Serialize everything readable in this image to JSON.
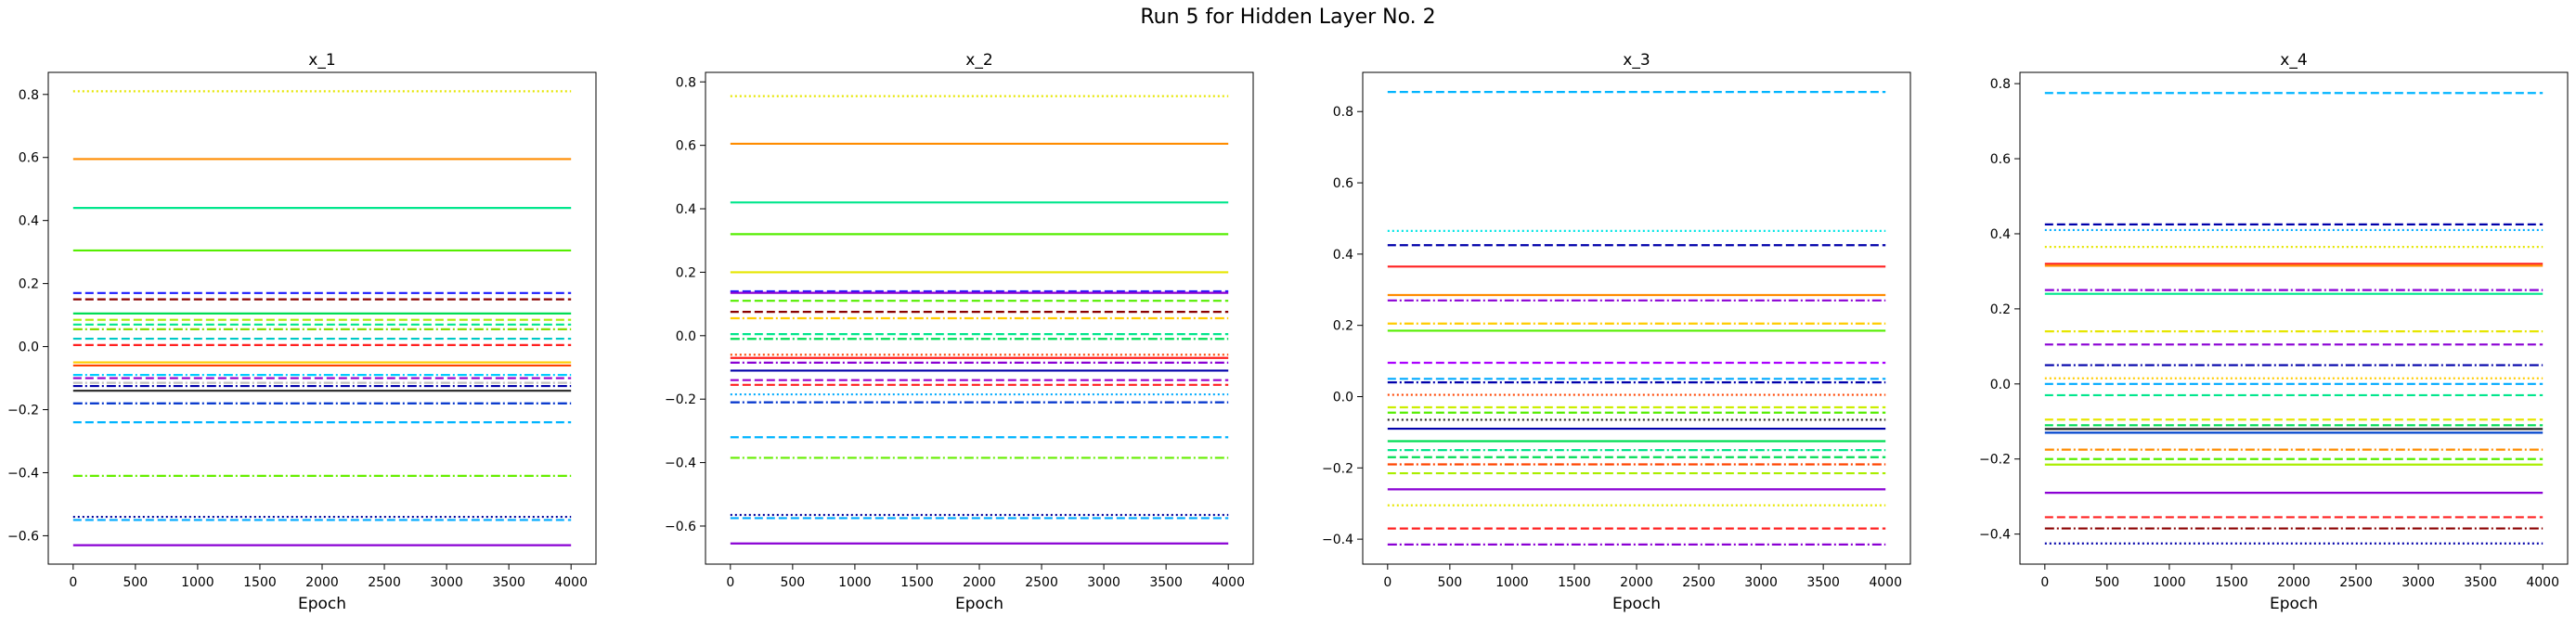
{
  "figure": {
    "suptitle": "Run 5 for Hidden Layer No. 2"
  },
  "chart_data": [
    {
      "type": "line",
      "title": "x_1",
      "xlabel": "Epoch",
      "ylabel": "",
      "xlim": [
        -200,
        4200
      ],
      "ylim": [
        -0.69,
        0.87
      ],
      "xticks": [
        0,
        500,
        1000,
        1500,
        2000,
        2500,
        3000,
        3500,
        4000
      ],
      "yticks": [
        -0.6,
        -0.4,
        -0.2,
        0.0,
        0.2,
        0.4,
        0.6,
        0.8
      ],
      "x": [
        0,
        4000
      ],
      "series": [
        {
          "value": 0.81,
          "color": "#e6e600",
          "dash": "dotted"
        },
        {
          "value": 0.595,
          "color": "#ff8c00",
          "dash": "solid"
        },
        {
          "value": 0.44,
          "color": "#00e68c",
          "dash": "solid"
        },
        {
          "value": 0.305,
          "color": "#55ee00",
          "dash": "solid"
        },
        {
          "value": 0.17,
          "color": "#1a1aff",
          "dash": "dashed"
        },
        {
          "value": 0.15,
          "color": "#8b0000",
          "dash": "dashed"
        },
        {
          "value": 0.105,
          "color": "#00dd55",
          "dash": "solid"
        },
        {
          "value": 0.085,
          "color": "#aaee00",
          "dash": "dashed"
        },
        {
          "value": 0.07,
          "color": "#00e68c",
          "dash": "dashed"
        },
        {
          "value": 0.055,
          "color": "#88dd00",
          "dash": "dashdot"
        },
        {
          "value": 0.025,
          "color": "#00c8c8",
          "dash": "dashed"
        },
        {
          "value": 0.005,
          "color": "#ff2020",
          "dash": "dashed"
        },
        {
          "value": -0.05,
          "color": "#ffcc00",
          "dash": "solid"
        },
        {
          "value": -0.06,
          "color": "#ff4400",
          "dash": "solid"
        },
        {
          "value": -0.09,
          "color": "#00ccff",
          "dash": "dashdot"
        },
        {
          "value": -0.1,
          "color": "#9900cc",
          "dash": "dashed"
        },
        {
          "value": -0.115,
          "color": "#c0c0c0",
          "dash": "dashdot"
        },
        {
          "value": -0.125,
          "color": "#0000aa",
          "dash": "dashdot"
        },
        {
          "value": -0.14,
          "color": "#333333",
          "dash": "solid"
        },
        {
          "value": -0.18,
          "color": "#0033cc",
          "dash": "dashdot"
        },
        {
          "value": -0.24,
          "color": "#00b4ff",
          "dash": "dashed"
        },
        {
          "value": -0.41,
          "color": "#66ee00",
          "dash": "dashdot"
        },
        {
          "value": -0.54,
          "color": "#000099",
          "dash": "dotted"
        },
        {
          "value": -0.55,
          "color": "#00aaff",
          "dash": "dashed"
        },
        {
          "value": -0.63,
          "color": "#8a00d4",
          "dash": "solid"
        }
      ]
    },
    {
      "type": "line",
      "title": "x_2",
      "xlabel": "Epoch",
      "ylabel": "",
      "xlim": [
        -200,
        4200
      ],
      "ylim": [
        -0.72,
        0.83
      ],
      "xticks": [
        0,
        500,
        1000,
        1500,
        2000,
        2500,
        3000,
        3500,
        4000
      ],
      "yticks": [
        -0.6,
        -0.4,
        -0.2,
        0.0,
        0.2,
        0.4,
        0.6,
        0.8
      ],
      "x": [
        0,
        4000
      ],
      "series": [
        {
          "value": 0.755,
          "color": "#e6e600",
          "dash": "dotted"
        },
        {
          "value": 0.605,
          "color": "#ff8c00",
          "dash": "solid"
        },
        {
          "value": 0.42,
          "color": "#00e68c",
          "dash": "solid"
        },
        {
          "value": 0.32,
          "color": "#55ee00",
          "dash": "solid"
        },
        {
          "value": 0.2,
          "color": "#e6e600",
          "dash": "solid"
        },
        {
          "value": 0.14,
          "color": "#1a1aff",
          "dash": "dashed"
        },
        {
          "value": 0.135,
          "color": "#8a00d4",
          "dash": "solid"
        },
        {
          "value": 0.11,
          "color": "#55ee00",
          "dash": "dashed"
        },
        {
          "value": 0.075,
          "color": "#8b0000",
          "dash": "dashed"
        },
        {
          "value": 0.055,
          "color": "#ffcc00",
          "dash": "dashdot"
        },
        {
          "value": 0.005,
          "color": "#00e68c",
          "dash": "dashed"
        },
        {
          "value": -0.01,
          "color": "#00dd55",
          "dash": "dashdot"
        },
        {
          "value": -0.06,
          "color": "#ff4400",
          "dash": "dotted"
        },
        {
          "value": -0.07,
          "color": "#ff2020",
          "dash": "solid"
        },
        {
          "value": -0.085,
          "color": "#8a00d4",
          "dash": "dashdot"
        },
        {
          "value": -0.11,
          "color": "#0000aa",
          "dash": "solid"
        },
        {
          "value": -0.14,
          "color": "#9900cc",
          "dash": "dashed"
        },
        {
          "value": -0.155,
          "color": "#ff2020",
          "dash": "dashed"
        },
        {
          "value": -0.185,
          "color": "#00aaff",
          "dash": "dotted"
        },
        {
          "value": -0.21,
          "color": "#0033cc",
          "dash": "dashdot"
        },
        {
          "value": -0.32,
          "color": "#00b4ff",
          "dash": "dashed"
        },
        {
          "value": -0.385,
          "color": "#66ee00",
          "dash": "dashdot"
        },
        {
          "value": -0.565,
          "color": "#000099",
          "dash": "dotted"
        },
        {
          "value": -0.575,
          "color": "#00aaff",
          "dash": "dashed"
        },
        {
          "value": -0.655,
          "color": "#8a00d4",
          "dash": "solid"
        }
      ]
    },
    {
      "type": "line",
      "title": "x_3",
      "xlabel": "Epoch",
      "ylabel": "",
      "xlim": [
        -200,
        4200
      ],
      "ylim": [
        -0.47,
        0.91
      ],
      "xticks": [
        0,
        500,
        1000,
        1500,
        2000,
        2500,
        3000,
        3500,
        4000
      ],
      "yticks": [
        -0.4,
        -0.2,
        0.0,
        0.2,
        0.4,
        0.6,
        0.8
      ],
      "x": [
        0,
        4000
      ],
      "series": [
        {
          "value": 0.855,
          "color": "#00b4ff",
          "dash": "dashed"
        },
        {
          "value": 0.465,
          "color": "#00e6e6",
          "dash": "dotted"
        },
        {
          "value": 0.425,
          "color": "#0000aa",
          "dash": "dashed"
        },
        {
          "value": 0.365,
          "color": "#ff2020",
          "dash": "solid"
        },
        {
          "value": 0.285,
          "color": "#ff8c00",
          "dash": "solid"
        },
        {
          "value": 0.27,
          "color": "#8a00d4",
          "dash": "dashdot"
        },
        {
          "value": 0.205,
          "color": "#ffcc00",
          "dash": "dashdot"
        },
        {
          "value": 0.185,
          "color": "#55ee00",
          "dash": "solid"
        },
        {
          "value": 0.095,
          "color": "#aa00ff",
          "dash": "dashed"
        },
        {
          "value": 0.05,
          "color": "#00aaff",
          "dash": "dashed"
        },
        {
          "value": 0.04,
          "color": "#0000aa",
          "dash": "dashdot"
        },
        {
          "value": 0.005,
          "color": "#ff4400",
          "dash": "dotted"
        },
        {
          "value": -0.03,
          "color": "#ccee00",
          "dash": "dashed"
        },
        {
          "value": -0.045,
          "color": "#55ee00",
          "dash": "dashed"
        },
        {
          "value": -0.065,
          "color": "#222222",
          "dash": "dotted"
        },
        {
          "value": -0.09,
          "color": "#0000aa",
          "dash": "solid"
        },
        {
          "value": -0.125,
          "color": "#00dd55",
          "dash": "solid"
        },
        {
          "value": -0.15,
          "color": "#00e68c",
          "dash": "dashdot"
        },
        {
          "value": -0.17,
          "color": "#00dd55",
          "dash": "dashed"
        },
        {
          "value": -0.19,
          "color": "#ff4400",
          "dash": "dashdot"
        },
        {
          "value": -0.215,
          "color": "#aaee00",
          "dash": "dashed"
        },
        {
          "value": -0.26,
          "color": "#8a00d4",
          "dash": "solid"
        },
        {
          "value": -0.305,
          "color": "#e6e600",
          "dash": "dotted"
        },
        {
          "value": -0.37,
          "color": "#ff2020",
          "dash": "dashed"
        },
        {
          "value": -0.415,
          "color": "#8a00d4",
          "dash": "dashdot"
        }
      ]
    },
    {
      "type": "line",
      "title": "x_4",
      "xlabel": "Epoch",
      "ylabel": "",
      "xlim": [
        -200,
        4200
      ],
      "ylim": [
        -0.48,
        0.83
      ],
      "xticks": [
        0,
        500,
        1000,
        1500,
        2000,
        2500,
        3000,
        3500,
        4000
      ],
      "yticks": [
        -0.4,
        -0.2,
        0.0,
        0.2,
        0.4,
        0.6,
        0.8
      ],
      "x": [
        0,
        4000
      ],
      "series": [
        {
          "value": 0.775,
          "color": "#00b4ff",
          "dash": "dashed"
        },
        {
          "value": 0.425,
          "color": "#0000aa",
          "dash": "dashed"
        },
        {
          "value": 0.41,
          "color": "#00aaff",
          "dash": "dotted"
        },
        {
          "value": 0.365,
          "color": "#e6e600",
          "dash": "dotted"
        },
        {
          "value": 0.32,
          "color": "#ff2020",
          "dash": "solid"
        },
        {
          "value": 0.315,
          "color": "#ff8c00",
          "dash": "solid"
        },
        {
          "value": 0.25,
          "color": "#8a00d4",
          "dash": "dashdot"
        },
        {
          "value": 0.24,
          "color": "#00e68c",
          "dash": "solid"
        },
        {
          "value": 0.14,
          "color": "#e6e600",
          "dash": "dashdot"
        },
        {
          "value": 0.105,
          "color": "#8a00d4",
          "dash": "dashed"
        },
        {
          "value": 0.05,
          "color": "#0000aa",
          "dash": "dashdot"
        },
        {
          "value": 0.015,
          "color": "#ffcc00",
          "dash": "dotted"
        },
        {
          "value": 0.0,
          "color": "#00aaff",
          "dash": "dashed"
        },
        {
          "value": -0.03,
          "color": "#00e68c",
          "dash": "dashed"
        },
        {
          "value": -0.095,
          "color": "#e6e600",
          "dash": "dashed"
        },
        {
          "value": -0.11,
          "color": "#00dd55",
          "dash": "dashed"
        },
        {
          "value": -0.12,
          "color": "#222222",
          "dash": "solid"
        },
        {
          "value": -0.13,
          "color": "#0044cc",
          "dash": "solid"
        },
        {
          "value": -0.175,
          "color": "#ff8c00",
          "dash": "dashdot"
        },
        {
          "value": -0.2,
          "color": "#55ee00",
          "dash": "dashed"
        },
        {
          "value": -0.215,
          "color": "#aaee00",
          "dash": "solid"
        },
        {
          "value": -0.29,
          "color": "#8a00d4",
          "dash": "solid"
        },
        {
          "value": -0.355,
          "color": "#ff2020",
          "dash": "dashed"
        },
        {
          "value": -0.385,
          "color": "#8b0000",
          "dash": "dashdot"
        },
        {
          "value": -0.425,
          "color": "#0000aa",
          "dash": "dotted"
        }
      ]
    }
  ]
}
